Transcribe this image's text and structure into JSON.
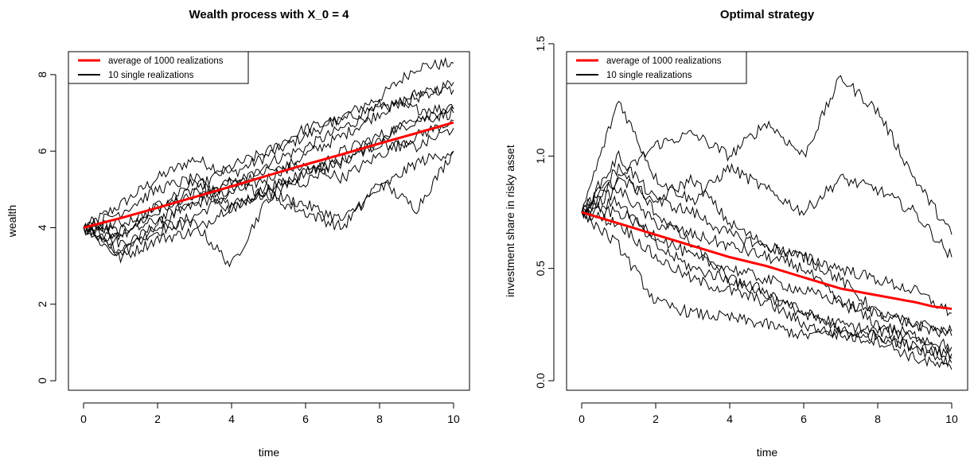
{
  "chart_data": [
    {
      "type": "line",
      "title": "Wealth process with X_0 = 4",
      "xlabel": "time",
      "ylabel": "wealth",
      "xlim": [
        0,
        10
      ],
      "ylim": [
        0,
        8.6
      ],
      "x_ticks": [
        "0",
        "2",
        "4",
        "6",
        "8",
        "10"
      ],
      "y_ticks": [
        "0",
        "2",
        "4",
        "6",
        "8"
      ],
      "legend": {
        "position": "top-left",
        "entries": [
          "average of 1000 realizations",
          "10 single realizations"
        ]
      },
      "series": [
        {
          "name": "average of 1000 realizations",
          "color": "#ff0000",
          "x": [
            0,
            1,
            2,
            3,
            4,
            5,
            6,
            7,
            8,
            9,
            10
          ],
          "values": [
            4.0,
            4.25,
            4.52,
            4.8,
            5.08,
            5.37,
            5.65,
            5.92,
            6.2,
            6.47,
            6.75
          ]
        },
        {
          "name": "10 single realizations",
          "color": "#000000",
          "x": [
            0,
            1,
            2,
            3,
            4,
            5,
            6,
            7,
            8,
            9,
            10
          ],
          "paths": [
            [
              4.0,
              4.6,
              5.3,
              5.8,
              5.4,
              5.9,
              6.4,
              6.9,
              7.4,
              8.2,
              8.3
            ],
            [
              4.0,
              3.4,
              4.1,
              4.6,
              5.0,
              5.7,
              6.1,
              6.6,
              7.1,
              7.4,
              7.8
            ],
            [
              4.0,
              3.6,
              3.9,
              4.3,
              4.9,
              5.3,
              5.9,
              6.4,
              7.0,
              7.5,
              7.6
            ],
            [
              4.0,
              3.9,
              4.4,
              5.0,
              5.6,
              6.0,
              6.6,
              6.8,
              7.2,
              7.1,
              7.1
            ],
            [
              4.0,
              3.2,
              3.7,
              3.9,
              4.6,
              5.0,
              5.4,
              6.0,
              6.4,
              6.8,
              7.0
            ],
            [
              4.0,
              3.8,
              4.2,
              4.7,
              5.2,
              5.5,
              5.6,
              5.3,
              5.9,
              6.4,
              6.8
            ],
            [
              4.0,
              3.3,
              4.0,
              4.1,
              3.0,
              4.8,
              4.4,
              4.0,
              5.2,
              4.5,
              6.0
            ],
            [
              4.0,
              4.4,
              5.0,
              5.3,
              4.6,
              4.9,
              4.6,
              4.2,
              5.0,
              5.7,
              6.0
            ],
            [
              4.0,
              3.7,
              4.6,
              5.2,
              4.4,
              5.1,
              5.2,
              5.8,
              6.2,
              6.1,
              6.6
            ],
            [
              4.0,
              4.1,
              4.5,
              4.9,
              5.2,
              4.8,
              5.5,
              5.7,
              6.3,
              6.9,
              7.1
            ]
          ]
        }
      ]
    },
    {
      "type": "line",
      "title": "Optimal strategy",
      "xlabel": "time",
      "ylabel": "investment share in risky asset",
      "xlim": [
        0,
        10
      ],
      "ylim": [
        0,
        1.5
      ],
      "x_ticks": [
        "0",
        "2",
        "4",
        "6",
        "8",
        "10"
      ],
      "y_ticks": [
        "0.0",
        "0.5",
        "1.0",
        "1.5"
      ],
      "legend": {
        "position": "top-left",
        "entries": [
          "average of 1000 realizations",
          "10 single realizations"
        ]
      },
      "series": [
        {
          "name": "average of 1000 realizations",
          "color": "#ff0000",
          "x": [
            0,
            1,
            2,
            3,
            4,
            5,
            6,
            7,
            8,
            9,
            9.5,
            10
          ],
          "values": [
            0.75,
            0.7,
            0.65,
            0.6,
            0.55,
            0.51,
            0.46,
            0.41,
            0.38,
            0.35,
            0.33,
            0.32
          ]
        },
        {
          "name": "10 single realizations",
          "color": "#000000",
          "x": [
            0,
            1,
            2,
            3,
            4,
            5,
            6,
            7,
            8,
            9,
            10
          ],
          "paths": [
            [
              0.75,
              0.9,
              1.05,
              1.1,
              1.0,
              1.15,
              1.0,
              1.35,
              1.2,
              0.9,
              0.65
            ],
            [
              0.75,
              1.25,
              0.9,
              0.8,
              0.95,
              0.85,
              0.75,
              0.9,
              0.85,
              0.75,
              0.55
            ],
            [
              0.75,
              1.0,
              0.8,
              0.9,
              0.7,
              0.6,
              0.55,
              0.45,
              0.3,
              0.25,
              0.2
            ],
            [
              0.75,
              0.85,
              0.7,
              0.65,
              0.6,
              0.55,
              0.5,
              0.35,
              0.25,
              0.2,
              0.15
            ],
            [
              0.75,
              0.95,
              0.75,
              0.6,
              0.45,
              0.4,
              0.3,
              0.25,
              0.22,
              0.2,
              0.1
            ],
            [
              0.75,
              0.6,
              0.35,
              0.3,
              0.28,
              0.25,
              0.2,
              0.22,
              0.2,
              0.15,
              0.08
            ],
            [
              0.75,
              0.8,
              0.6,
              0.5,
              0.45,
              0.38,
              0.3,
              0.22,
              0.2,
              0.15,
              0.12
            ],
            [
              0.75,
              0.7,
              0.55,
              0.45,
              0.4,
              0.35,
              0.25,
              0.2,
              0.18,
              0.1,
              0.05
            ],
            [
              0.75,
              0.9,
              0.8,
              0.75,
              0.65,
              0.6,
              0.55,
              0.5,
              0.45,
              0.4,
              0.3
            ],
            [
              0.75,
              0.75,
              0.65,
              0.55,
              0.5,
              0.45,
              0.4,
              0.35,
              0.3,
              0.25,
              0.22
            ]
          ]
        }
      ]
    }
  ]
}
